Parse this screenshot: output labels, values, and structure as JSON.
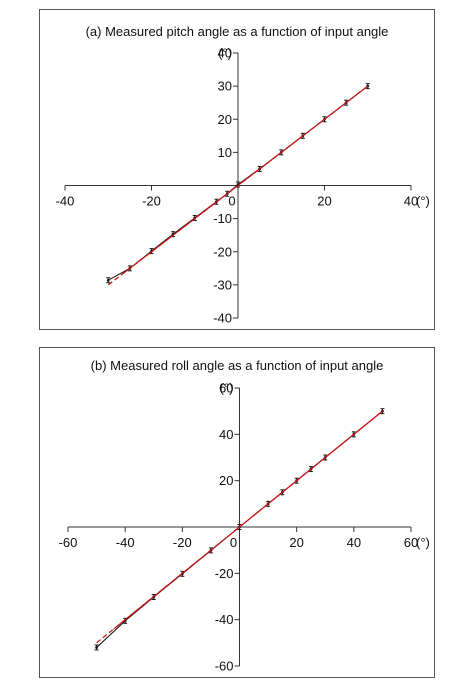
{
  "colors": {
    "measured": "#1a1a1a",
    "fit": "#cc1111",
    "axis": "#333333",
    "frame": "#555555"
  },
  "chart_data": [
    {
      "type": "line",
      "title": "(a) Measured pitch angle as a function of input angle",
      "xlabel": "(°)",
      "ylabel": "(°)",
      "xlim": [
        -40,
        40
      ],
      "ylim": [
        -40,
        40
      ],
      "x_ticks": [
        -40,
        -20,
        0,
        20,
        40
      ],
      "y_ticks": [
        -40,
        -30,
        -20,
        -10,
        0,
        10,
        20,
        30,
        40
      ],
      "grid": false,
      "legend": "none",
      "series": [
        {
          "style": "solid-black-with-error-bars",
          "x": [
            -30,
            -25,
            -20,
            -15,
            -10,
            -5,
            -2.5,
            0,
            5,
            10,
            15,
            20,
            25,
            30
          ],
          "y": [
            -28.6,
            -25,
            -19.8,
            -14.7,
            -9.8,
            -4.9,
            -2.5,
            0.3,
            5,
            10,
            15,
            20,
            25,
            30
          ]
        },
        {
          "style": "dashed-red-fit",
          "x": [
            -30,
            30
          ],
          "y": [
            -30,
            30
          ]
        }
      ]
    },
    {
      "type": "line",
      "title": "(b) Measured roll angle as a function of input angle",
      "xlabel": "(°)",
      "ylabel": "(°)",
      "xlim": [
        -60,
        60
      ],
      "ylim": [
        -60,
        60
      ],
      "x_ticks": [
        -60,
        -40,
        -20,
        0,
        20,
        40,
        60
      ],
      "y_ticks": [
        -60,
        -40,
        -20,
        0,
        20,
        40,
        60
      ],
      "grid": false,
      "legend": "none",
      "series": [
        {
          "style": "solid-black-with-error-bars",
          "x": [
            -50,
            -40,
            -30,
            -20,
            -10,
            0,
            10,
            15,
            20,
            25,
            30,
            40,
            50
          ],
          "y": [
            -52,
            -40.5,
            -30.2,
            -20.2,
            -10.1,
            0,
            10,
            15,
            20,
            25,
            30,
            40,
            50
          ]
        },
        {
          "style": "dashed-red-fit",
          "x": [
            -50,
            50
          ],
          "y": [
            -50,
            50
          ]
        }
      ]
    }
  ]
}
